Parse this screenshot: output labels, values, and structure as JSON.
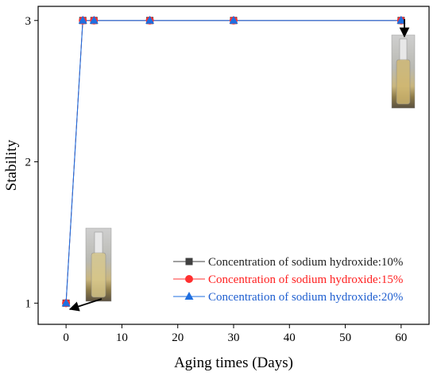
{
  "chart_data": {
    "type": "line",
    "xlabel": "Aging times (Days)",
    "ylabel": "Stability",
    "xlim": [
      -5,
      65
    ],
    "ylim": [
      0.85,
      3.1
    ],
    "xticks": [
      0,
      10,
      20,
      30,
      40,
      50,
      60
    ],
    "yticks": [
      1,
      2,
      3
    ],
    "grid": false,
    "legend_position": "bottom-right",
    "series": [
      {
        "name": "Concentration of sodium hydroxide:10%",
        "color": "#404040",
        "text_color": "#222222",
        "marker": "square",
        "x": [
          0,
          3,
          5,
          15,
          30,
          60
        ],
        "y": [
          1,
          3,
          3,
          3,
          3,
          3
        ]
      },
      {
        "name": "Concentration of sodium hydroxide:15%",
        "color": "#ff3030",
        "text_color": "#ff2020",
        "marker": "circle",
        "x": [
          0,
          3,
          5,
          15,
          30,
          60
        ],
        "y": [
          1,
          3,
          3,
          3,
          3,
          3
        ]
      },
      {
        "name": "Concentration of sodium hydroxide:20%",
        "color": "#1f6fe0",
        "text_color": "#1f5fd0",
        "marker": "triangle",
        "x": [
          0,
          3,
          5,
          15,
          30,
          60
        ],
        "y": [
          1,
          3,
          3,
          3,
          3,
          3
        ]
      }
    ],
    "photo_insets": [
      {
        "icon": "sample-vial-photo",
        "arrow_to": {
          "x": 0,
          "y": 1
        }
      },
      {
        "icon": "sample-vial-photo",
        "arrow_to": {
          "x": 60,
          "y": 3
        }
      }
    ]
  }
}
